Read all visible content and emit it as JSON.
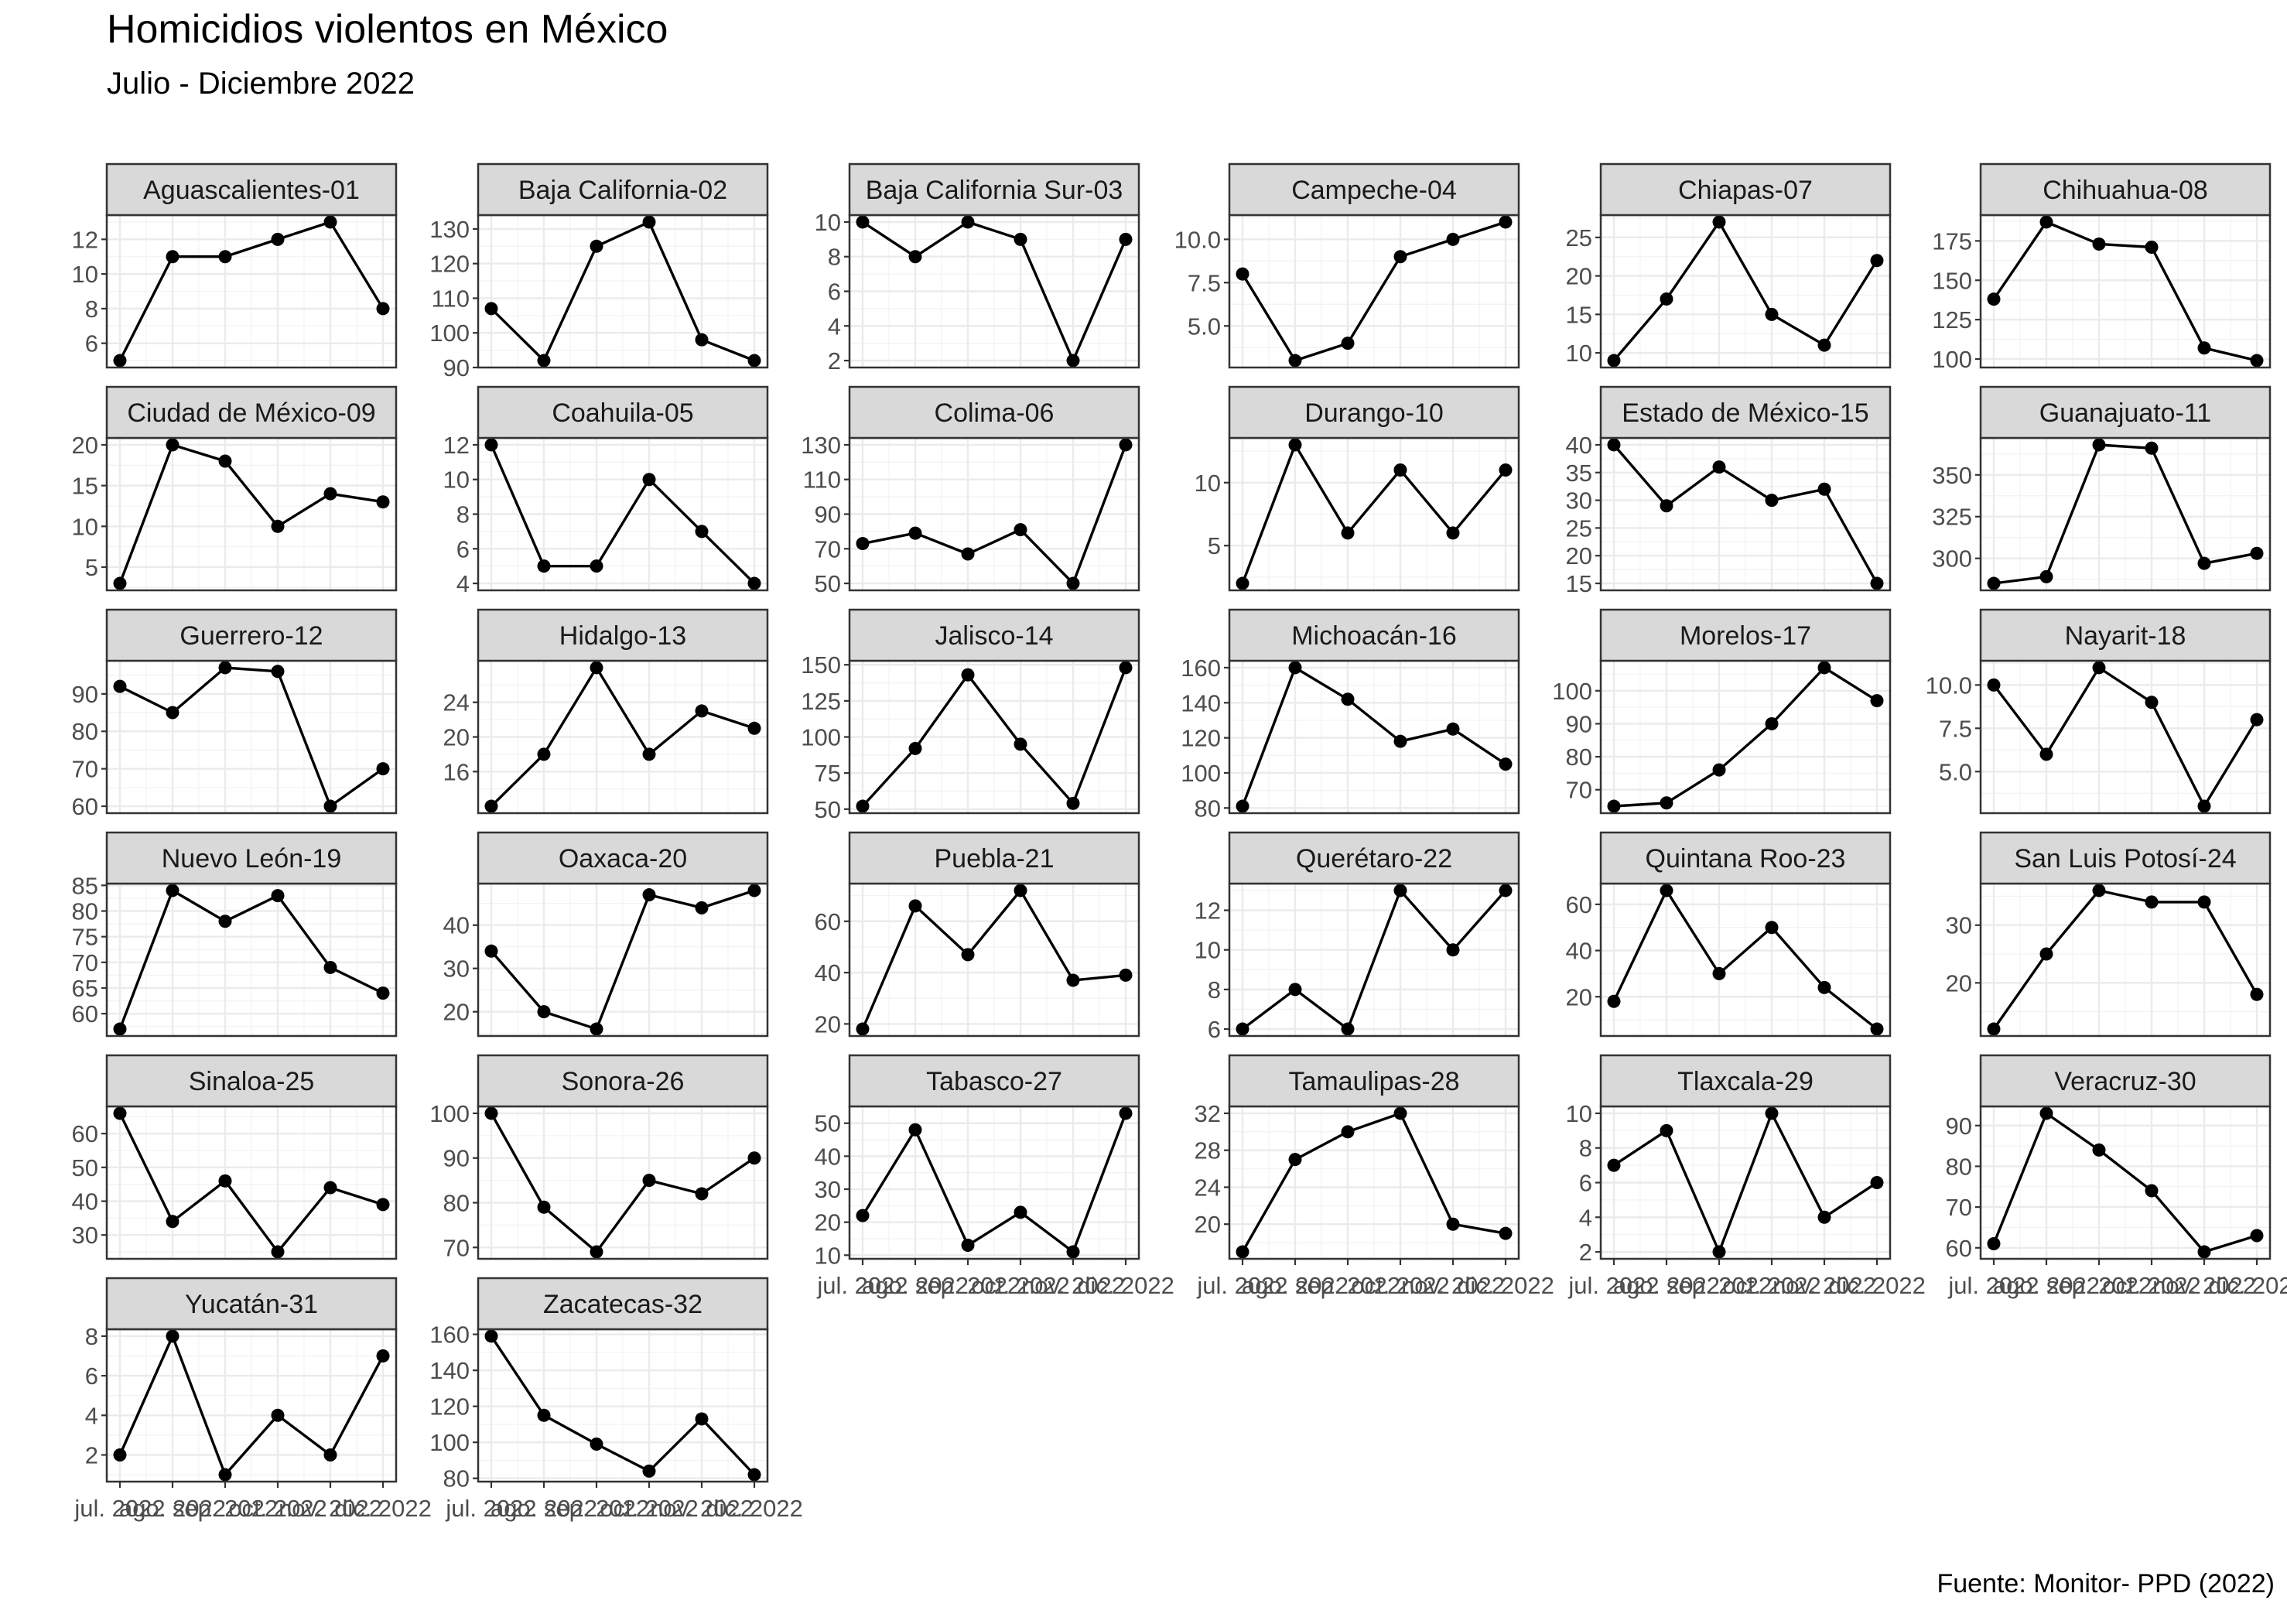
{
  "title": "Homicidios violentos en México",
  "subtitle": "Julio - Diciembre 2022",
  "caption": "Fuente: Monitor- PPD (2022)",
  "chart_data": {
    "type": "line",
    "layout": "facets",
    "ncol": 6,
    "x": [
      "jul. 2022",
      "ago. 2022",
      "sep. 2022",
      "oct. 2022",
      "nov. 2022",
      "dic. 2022"
    ],
    "grid": true,
    "facets": [
      {
        "name": "Aguascalientes-01",
        "values": [
          5,
          11,
          11,
          12,
          13,
          8
        ],
        "ylim": [
          4.6,
          13.4
        ],
        "yticks": [
          6,
          8,
          10,
          12
        ]
      },
      {
        "name": "Baja California-02",
        "values": [
          107,
          92,
          125,
          132,
          98,
          92
        ],
        "ylim": [
          90,
          134
        ],
        "yticks": [
          90,
          100,
          110,
          120,
          130
        ]
      },
      {
        "name": "Baja California Sur-03",
        "values": [
          10,
          8,
          10,
          9,
          2,
          9
        ],
        "ylim": [
          1.6,
          10.4
        ],
        "yticks": [
          2,
          4,
          6,
          8,
          10
        ]
      },
      {
        "name": "Campeche-04",
        "values": [
          8,
          3,
          4,
          9,
          10,
          11
        ],
        "ylim": [
          2.6,
          11.4
        ],
        "yticks": [
          5.0,
          7.5,
          10.0
        ]
      },
      {
        "name": "Chiapas-07",
        "values": [
          9,
          17,
          27,
          15,
          11,
          22
        ],
        "ylim": [
          8.1,
          27.9
        ],
        "yticks": [
          10,
          15,
          20,
          25
        ]
      },
      {
        "name": "Chihuahua-08",
        "values": [
          138,
          187,
          173,
          171,
          107,
          99
        ],
        "ylim": [
          94.6,
          191.4
        ],
        "yticks": [
          100,
          125,
          150,
          175
        ]
      },
      {
        "name": "Ciudad de México-09",
        "values": [
          3,
          20,
          18,
          10,
          14,
          13
        ],
        "ylim": [
          2.15,
          20.85
        ],
        "yticks": [
          5,
          10,
          15,
          20
        ]
      },
      {
        "name": "Coahuila-05",
        "values": [
          12,
          5,
          5,
          10,
          7,
          4
        ],
        "ylim": [
          3.6,
          12.4
        ],
        "yticks": [
          4,
          6,
          8,
          10,
          12
        ]
      },
      {
        "name": "Colima-06",
        "values": [
          73,
          79,
          67,
          81,
          50,
          130
        ],
        "ylim": [
          46,
          134
        ],
        "yticks": [
          50,
          70,
          90,
          110,
          130
        ]
      },
      {
        "name": "Durango-10",
        "values": [
          2,
          13,
          6,
          11,
          6,
          11
        ],
        "ylim": [
          1.45,
          13.55
        ],
        "yticks": [
          5,
          10
        ]
      },
      {
        "name": "Estado de México-15",
        "values": [
          40,
          29,
          36,
          30,
          32,
          15
        ],
        "ylim": [
          13.75,
          41.25
        ],
        "yticks": [
          15,
          20,
          25,
          30,
          35,
          40
        ]
      },
      {
        "name": "Guanajuato-11",
        "values": [
          285,
          289,
          368,
          366,
          297,
          303
        ],
        "ylim": [
          280.85,
          372.15
        ],
        "yticks": [
          300,
          325,
          350
        ]
      },
      {
        "name": "Guerrero-12",
        "values": [
          92,
          85,
          97,
          96,
          60,
          70
        ],
        "ylim": [
          58.15,
          98.85
        ],
        "yticks": [
          60,
          70,
          80,
          90
        ]
      },
      {
        "name": "Hidalgo-13",
        "values": [
          12,
          18,
          28,
          18,
          23,
          21
        ],
        "ylim": [
          11.2,
          28.8
        ],
        "yticks": [
          16,
          20,
          24
        ]
      },
      {
        "name": "Jalisco-14",
        "values": [
          52,
          92,
          143,
          95,
          54,
          148
        ],
        "ylim": [
          47.2,
          152.8
        ],
        "yticks": [
          50,
          75,
          100,
          125,
          150
        ]
      },
      {
        "name": "Michoacán-16",
        "values": [
          81,
          160,
          142,
          118,
          125,
          105
        ],
        "ylim": [
          77.05,
          163.95
        ],
        "yticks": [
          80,
          100,
          120,
          140,
          160
        ]
      },
      {
        "name": "Morelos-17",
        "values": [
          65,
          66,
          76,
          90,
          107,
          97
        ],
        "ylim": [
          62.9,
          109.1
        ],
        "yticks": [
          70,
          80,
          90,
          100
        ]
      },
      {
        "name": "Nayarit-18",
        "values": [
          10,
          6,
          11,
          9,
          3,
          8
        ],
        "ylim": [
          2.6,
          11.4
        ],
        "yticks": [
          5.0,
          7.5,
          10.0
        ]
      },
      {
        "name": "Nuevo León-19",
        "values": [
          57,
          84,
          78,
          83,
          69,
          64
        ],
        "ylim": [
          55.65,
          85.35
        ],
        "yticks": [
          60,
          65,
          70,
          75,
          80,
          85
        ]
      },
      {
        "name": "Oaxaca-20",
        "values": [
          34,
          20,
          16,
          47,
          44,
          48
        ],
        "ylim": [
          14.4,
          49.6
        ],
        "yticks": [
          20,
          30,
          40
        ]
      },
      {
        "name": "Puebla-21",
        "values": [
          18,
          66,
          47,
          72,
          37,
          39
        ],
        "ylim": [
          15.3,
          74.7
        ],
        "yticks": [
          20,
          40,
          60
        ]
      },
      {
        "name": "Querétaro-22",
        "values": [
          6,
          8,
          6,
          13,
          10,
          13
        ],
        "ylim": [
          5.65,
          13.35
        ],
        "yticks": [
          6,
          8,
          10,
          12
        ]
      },
      {
        "name": "Quintana Roo-23",
        "values": [
          18,
          66,
          30,
          50,
          24,
          6
        ],
        "ylim": [
          3,
          69
        ],
        "yticks": [
          20,
          40,
          60
        ]
      },
      {
        "name": "San Luis Potosí-24",
        "values": [
          12,
          25,
          36,
          34,
          34,
          18
        ],
        "ylim": [
          10.8,
          37.2
        ],
        "yticks": [
          20,
          30
        ]
      },
      {
        "name": "Sinaloa-25",
        "values": [
          66,
          34,
          46,
          25,
          44,
          39
        ],
        "ylim": [
          22.95,
          68.05
        ],
        "yticks": [
          30,
          40,
          50,
          60
        ]
      },
      {
        "name": "Sonora-26",
        "values": [
          100,
          79,
          69,
          85,
          82,
          90
        ],
        "ylim": [
          67.45,
          101.55
        ],
        "yticks": [
          70,
          80,
          90,
          100
        ]
      },
      {
        "name": "Tabasco-27",
        "values": [
          22,
          48,
          13,
          23,
          11,
          53
        ],
        "ylim": [
          8.9,
          55.1
        ],
        "yticks": [
          10,
          20,
          30,
          40,
          50
        ]
      },
      {
        "name": "Tamaulipas-28",
        "values": [
          17,
          27,
          30,
          32,
          20,
          19
        ],
        "ylim": [
          16.25,
          32.75
        ],
        "yticks": [
          20,
          24,
          28,
          32
        ]
      },
      {
        "name": "Tlaxcala-29",
        "values": [
          7,
          9,
          2,
          10,
          4,
          6
        ],
        "ylim": [
          1.6,
          10.4
        ],
        "yticks": [
          2,
          4,
          6,
          8,
          10
        ]
      },
      {
        "name": "Veracruz-30",
        "values": [
          61,
          93,
          84,
          74,
          59,
          63
        ],
        "ylim": [
          57.3,
          94.7
        ],
        "yticks": [
          60,
          70,
          80,
          90
        ]
      },
      {
        "name": "Yucatán-31",
        "values": [
          2,
          8,
          1,
          4,
          2,
          7
        ],
        "ylim": [
          0.65,
          8.35
        ],
        "yticks": [
          2,
          4,
          6,
          8
        ]
      },
      {
        "name": "Zacatecas-32",
        "values": [
          159,
          115,
          99,
          84,
          113,
          82
        ],
        "ylim": [
          78.15,
          162.85
        ],
        "yticks": [
          80,
          100,
          120,
          140,
          160
        ]
      }
    ]
  }
}
